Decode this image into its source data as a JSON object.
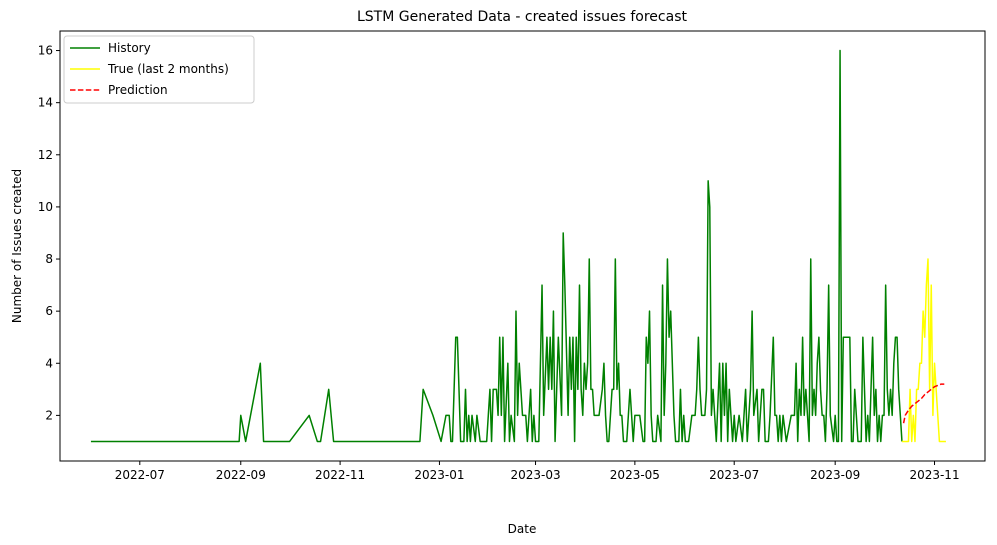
{
  "chart_data": {
    "type": "line",
    "title": "LSTM Generated Data - created issues forecast",
    "xlabel": "Date",
    "ylabel": "Number of Issues created",
    "xlim": [
      "2022-05-13",
      "2023-12-02"
    ],
    "ylim": [
      0.25,
      16.75
    ],
    "x_ticks": [
      "2022-07-01",
      "2022-09-01",
      "2022-11-01",
      "2023-01-01",
      "2023-03-01",
      "2023-05-01",
      "2023-07-01",
      "2023-09-01",
      "2023-11-01"
    ],
    "x_tick_labels": [
      "2022-07",
      "2022-09",
      "2022-11",
      "2023-01",
      "2023-03",
      "2023-05",
      "2023-07",
      "2023-09",
      "2023-11"
    ],
    "y_ticks": [
      2,
      4,
      6,
      8,
      10,
      12,
      14,
      16
    ],
    "legend_position": "upper-left",
    "grid": false,
    "series": [
      {
        "name": "History",
        "color": "#008000",
        "style": "solid",
        "points": [
          [
            "2022-06-01",
            1
          ],
          [
            "2022-08-31",
            1
          ],
          [
            "2022-09-01",
            2
          ],
          [
            "2022-09-04",
            1
          ],
          [
            "2022-09-13",
            4
          ],
          [
            "2022-09-15",
            1
          ],
          [
            "2022-10-01",
            1
          ],
          [
            "2022-10-13",
            2
          ],
          [
            "2022-10-18",
            1
          ],
          [
            "2022-10-20",
            1
          ],
          [
            "2022-10-25",
            3
          ],
          [
            "2022-10-28",
            1
          ],
          [
            "2022-12-20",
            1
          ],
          [
            "2022-12-22",
            3
          ],
          [
            "2022-12-28",
            2
          ],
          [
            "2023-01-02",
            1
          ],
          [
            "2023-01-05",
            2
          ],
          [
            "2023-01-07",
            2
          ],
          [
            "2023-01-08",
            1
          ],
          [
            "2023-01-09",
            1
          ],
          [
            "2023-01-11",
            5
          ],
          [
            "2023-01-12",
            5
          ],
          [
            "2023-01-14",
            1
          ],
          [
            "2023-01-16",
            1
          ],
          [
            "2023-01-17",
            3
          ],
          [
            "2023-01-18",
            1
          ],
          [
            "2023-01-19",
            2
          ],
          [
            "2023-01-20",
            1
          ],
          [
            "2023-01-21",
            2
          ],
          [
            "2023-01-23",
            1
          ],
          [
            "2023-01-24",
            2
          ],
          [
            "2023-01-26",
            1
          ],
          [
            "2023-01-28",
            1
          ],
          [
            "2023-01-30",
            1
          ],
          [
            "2023-02-01",
            3
          ],
          [
            "2023-02-02",
            1
          ],
          [
            "2023-02-03",
            3
          ],
          [
            "2023-02-05",
            3
          ],
          [
            "2023-02-06",
            2
          ],
          [
            "2023-02-07",
            5
          ],
          [
            "2023-02-08",
            2
          ],
          [
            "2023-02-09",
            5
          ],
          [
            "2023-02-10",
            1
          ],
          [
            "2023-02-12",
            4
          ],
          [
            "2023-02-13",
            1
          ],
          [
            "2023-02-14",
            2
          ],
          [
            "2023-02-16",
            1
          ],
          [
            "2023-02-17",
            6
          ],
          [
            "2023-02-18",
            2
          ],
          [
            "2023-02-19",
            4
          ],
          [
            "2023-02-20",
            3
          ],
          [
            "2023-02-21",
            2
          ],
          [
            "2023-02-23",
            2
          ],
          [
            "2023-02-24",
            1
          ],
          [
            "2023-02-26",
            3
          ],
          [
            "2023-02-27",
            1
          ],
          [
            "2023-02-28",
            2
          ],
          [
            "2023-03-01",
            1
          ],
          [
            "2023-03-03",
            1
          ],
          [
            "2023-03-05",
            7
          ],
          [
            "2023-03-06",
            2
          ],
          [
            "2023-03-08",
            5
          ],
          [
            "2023-03-09",
            3
          ],
          [
            "2023-03-10",
            5
          ],
          [
            "2023-03-11",
            3
          ],
          [
            "2023-03-12",
            6
          ],
          [
            "2023-03-13",
            1
          ],
          [
            "2023-03-14",
            3
          ],
          [
            "2023-03-15",
            5
          ],
          [
            "2023-03-17",
            2
          ],
          [
            "2023-03-18",
            9
          ],
          [
            "2023-03-19",
            7
          ],
          [
            "2023-03-21",
            2
          ],
          [
            "2023-03-22",
            5
          ],
          [
            "2023-03-23",
            3
          ],
          [
            "2023-03-24",
            5
          ],
          [
            "2023-03-25",
            1
          ],
          [
            "2023-03-26",
            5
          ],
          [
            "2023-03-27",
            3
          ],
          [
            "2023-03-28",
            7
          ],
          [
            "2023-03-29",
            3
          ],
          [
            "2023-03-30",
            2
          ],
          [
            "2023-03-31",
            4
          ],
          [
            "2023-04-01",
            3
          ],
          [
            "2023-04-02",
            4
          ],
          [
            "2023-04-03",
            8
          ],
          [
            "2023-04-04",
            3
          ],
          [
            "2023-04-05",
            3
          ],
          [
            "2023-04-06",
            2
          ],
          [
            "2023-04-07",
            2
          ],
          [
            "2023-04-09",
            2
          ],
          [
            "2023-04-11",
            3
          ],
          [
            "2023-04-12",
            4
          ],
          [
            "2023-04-13",
            2
          ],
          [
            "2023-04-14",
            1
          ],
          [
            "2023-04-15",
            1
          ],
          [
            "2023-04-17",
            3
          ],
          [
            "2023-04-18",
            3
          ],
          [
            "2023-04-19",
            8
          ],
          [
            "2023-04-20",
            3
          ],
          [
            "2023-04-21",
            4
          ],
          [
            "2023-04-22",
            2
          ],
          [
            "2023-04-23",
            2
          ],
          [
            "2023-04-24",
            1
          ],
          [
            "2023-04-26",
            1
          ],
          [
            "2023-04-28",
            3
          ],
          [
            "2023-04-29",
            2
          ],
          [
            "2023-04-30",
            1
          ],
          [
            "2023-05-01",
            2
          ],
          [
            "2023-05-02",
            2
          ],
          [
            "2023-05-04",
            2
          ],
          [
            "2023-05-06",
            1
          ],
          [
            "2023-05-07",
            1
          ],
          [
            "2023-05-08",
            5
          ],
          [
            "2023-05-09",
            4
          ],
          [
            "2023-05-10",
            6
          ],
          [
            "2023-05-11",
            2
          ],
          [
            "2023-05-12",
            1
          ],
          [
            "2023-05-14",
            1
          ],
          [
            "2023-05-15",
            2
          ],
          [
            "2023-05-17",
            1
          ],
          [
            "2023-05-18",
            7
          ],
          [
            "2023-05-19",
            2
          ],
          [
            "2023-05-20",
            4
          ],
          [
            "2023-05-21",
            8
          ],
          [
            "2023-05-22",
            5
          ],
          [
            "2023-05-23",
            6
          ],
          [
            "2023-05-24",
            4
          ],
          [
            "2023-05-25",
            2
          ],
          [
            "2023-05-26",
            1
          ],
          [
            "2023-05-28",
            1
          ],
          [
            "2023-05-29",
            3
          ],
          [
            "2023-05-30",
            1
          ],
          [
            "2023-05-31",
            2
          ],
          [
            "2023-06-01",
            1
          ],
          [
            "2023-06-03",
            1
          ],
          [
            "2023-06-05",
            2
          ],
          [
            "2023-06-07",
            2
          ],
          [
            "2023-06-08",
            3
          ],
          [
            "2023-06-09",
            5
          ],
          [
            "2023-06-10",
            3
          ],
          [
            "2023-06-11",
            2
          ],
          [
            "2023-06-12",
            2
          ],
          [
            "2023-06-13",
            2
          ],
          [
            "2023-06-14",
            3
          ],
          [
            "2023-06-15",
            11
          ],
          [
            "2023-06-16",
            10
          ],
          [
            "2023-06-17",
            2
          ],
          [
            "2023-06-18",
            3
          ],
          [
            "2023-06-19",
            2
          ],
          [
            "2023-06-20",
            1
          ],
          [
            "2023-06-22",
            4
          ],
          [
            "2023-06-23",
            1
          ],
          [
            "2023-06-24",
            4
          ],
          [
            "2023-06-25",
            2
          ],
          [
            "2023-06-26",
            4
          ],
          [
            "2023-06-27",
            1
          ],
          [
            "2023-06-28",
            3
          ],
          [
            "2023-06-29",
            2
          ],
          [
            "2023-06-30",
            1
          ],
          [
            "2023-07-01",
            2
          ],
          [
            "2023-07-02",
            1
          ],
          [
            "2023-07-04",
            2
          ],
          [
            "2023-07-06",
            1
          ],
          [
            "2023-07-08",
            3
          ],
          [
            "2023-07-09",
            1
          ],
          [
            "2023-07-11",
            3
          ],
          [
            "2023-07-12",
            6
          ],
          [
            "2023-07-13",
            2
          ],
          [
            "2023-07-15",
            3
          ],
          [
            "2023-07-16",
            1
          ],
          [
            "2023-07-18",
            3
          ],
          [
            "2023-07-19",
            3
          ],
          [
            "2023-07-20",
            1
          ],
          [
            "2023-07-22",
            1
          ],
          [
            "2023-07-23",
            2
          ],
          [
            "2023-07-25",
            5
          ],
          [
            "2023-07-26",
            2
          ],
          [
            "2023-07-27",
            2
          ],
          [
            "2023-07-28",
            1
          ],
          [
            "2023-07-29",
            2
          ],
          [
            "2023-07-30",
            1
          ],
          [
            "2023-07-31",
            2
          ],
          [
            "2023-08-02",
            1
          ],
          [
            "2023-08-05",
            2
          ],
          [
            "2023-08-07",
            2
          ],
          [
            "2023-08-08",
            4
          ],
          [
            "2023-08-09",
            1
          ],
          [
            "2023-08-10",
            3
          ],
          [
            "2023-08-11",
            2
          ],
          [
            "2023-08-12",
            5
          ],
          [
            "2023-08-13",
            2
          ],
          [
            "2023-08-14",
            3
          ],
          [
            "2023-08-15",
            2
          ],
          [
            "2023-08-16",
            1
          ],
          [
            "2023-08-17",
            8
          ],
          [
            "2023-08-18",
            2
          ],
          [
            "2023-08-19",
            3
          ],
          [
            "2023-08-20",
            2
          ],
          [
            "2023-08-21",
            4
          ],
          [
            "2023-08-22",
            5
          ],
          [
            "2023-08-23",
            3
          ],
          [
            "2023-08-24",
            2
          ],
          [
            "2023-08-25",
            2
          ],
          [
            "2023-08-26",
            1
          ],
          [
            "2023-08-27",
            3
          ],
          [
            "2023-08-28",
            7
          ],
          [
            "2023-08-29",
            2
          ],
          [
            "2023-08-31",
            1
          ],
          [
            "2023-09-01",
            2
          ],
          [
            "2023-09-02",
            1
          ],
          [
            "2023-09-03",
            1
          ],
          [
            "2023-09-04",
            16
          ],
          [
            "2023-09-05",
            1
          ],
          [
            "2023-09-06",
            5
          ],
          [
            "2023-09-10",
            5
          ],
          [
            "2023-09-11",
            1
          ],
          [
            "2023-09-12",
            1
          ],
          [
            "2023-09-13",
            3
          ],
          [
            "2023-09-14",
            2
          ],
          [
            "2023-09-15",
            1
          ],
          [
            "2023-09-17",
            1
          ],
          [
            "2023-09-18",
            5
          ],
          [
            "2023-09-19",
            3
          ],
          [
            "2023-09-20",
            1
          ],
          [
            "2023-09-21",
            2
          ],
          [
            "2023-09-22",
            1
          ],
          [
            "2023-09-23",
            3
          ],
          [
            "2023-09-24",
            5
          ],
          [
            "2023-09-25",
            2
          ],
          [
            "2023-09-26",
            3
          ],
          [
            "2023-09-27",
            1
          ],
          [
            "2023-09-28",
            2
          ],
          [
            "2023-09-29",
            1
          ],
          [
            "2023-09-30",
            2
          ],
          [
            "2023-10-01",
            2
          ],
          [
            "2023-10-02",
            7
          ],
          [
            "2023-10-03",
            3
          ],
          [
            "2023-10-04",
            2
          ],
          [
            "2023-10-05",
            3
          ],
          [
            "2023-10-06",
            2
          ],
          [
            "2023-10-07",
            4
          ],
          [
            "2023-10-08",
            5
          ],
          [
            "2023-10-09",
            5
          ],
          [
            "2023-10-10",
            3
          ],
          [
            "2023-10-12",
            1
          ]
        ]
      },
      {
        "name": "True (last 2 months)",
        "color": "#ffff00",
        "style": "solid",
        "points": [
          [
            "2023-10-12",
            1
          ],
          [
            "2023-10-14",
            1
          ],
          [
            "2023-10-16",
            1
          ],
          [
            "2023-10-17",
            3
          ],
          [
            "2023-10-18",
            1
          ],
          [
            "2023-10-19",
            2
          ],
          [
            "2023-10-20",
            1
          ],
          [
            "2023-10-21",
            3
          ],
          [
            "2023-10-22",
            3
          ],
          [
            "2023-10-23",
            4
          ],
          [
            "2023-10-24",
            4
          ],
          [
            "2023-10-25",
            6
          ],
          [
            "2023-10-26",
            5
          ],
          [
            "2023-10-27",
            7
          ],
          [
            "2023-10-28",
            8
          ],
          [
            "2023-10-29",
            3
          ],
          [
            "2023-10-30",
            7
          ],
          [
            "2023-10-31",
            2
          ],
          [
            "2023-11-01",
            4
          ],
          [
            "2023-11-02",
            3
          ],
          [
            "2023-11-03",
            2
          ],
          [
            "2023-11-04",
            1
          ],
          [
            "2023-11-06",
            1
          ],
          [
            "2023-11-08",
            1
          ]
        ]
      },
      {
        "name": "Prediction",
        "color": "#ff0000",
        "style": "dashed",
        "points": [
          [
            "2023-10-13",
            1.7
          ],
          [
            "2023-10-14",
            2.0
          ],
          [
            "2023-10-16",
            2.2
          ],
          [
            "2023-10-18",
            2.35
          ],
          [
            "2023-10-20",
            2.45
          ],
          [
            "2023-10-22",
            2.55
          ],
          [
            "2023-10-24",
            2.65
          ],
          [
            "2023-10-26",
            2.8
          ],
          [
            "2023-10-28",
            2.9
          ],
          [
            "2023-10-30",
            3.0
          ],
          [
            "2023-11-01",
            3.1
          ],
          [
            "2023-11-03",
            3.15
          ],
          [
            "2023-11-05",
            3.2
          ],
          [
            "2023-11-07",
            3.2
          ]
        ]
      }
    ]
  }
}
